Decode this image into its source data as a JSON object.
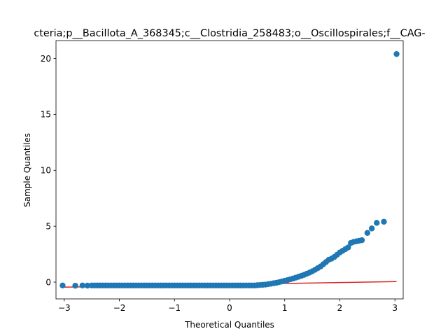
{
  "chart_data": {
    "type": "scatter",
    "title": "cteria;p__Bacillota_A_368345;c__Clostridia_258483;o__Oscillospirales;f__CAG-",
    "xlabel": "Theoretical Quantiles",
    "ylabel": "Sample Quantiles",
    "xlim": [
      -3.15,
      3.15
    ],
    "ylim": [
      -1.5,
      21.6
    ],
    "xticks": [
      -3,
      -2,
      -1,
      0,
      1,
      2,
      3
    ],
    "yticks": [
      0,
      5,
      10,
      15,
      20
    ],
    "grid": false,
    "colors": {
      "points": "#1f77b4",
      "line": "#d62728"
    },
    "reference_line": {
      "x": [
        -3.03,
        3.03
      ],
      "y": [
        -0.45,
        0.05
      ]
    },
    "series": [
      {
        "type": "scatter",
        "x": [
          -3.03,
          -2.8,
          -2.67,
          -2.58,
          -2.5,
          -2.45,
          -2.4,
          -2.35,
          -2.3,
          -2.25,
          -2.2,
          -2.15,
          -2.1,
          -2.05,
          -2.0,
          -1.95,
          -1.9,
          -1.85,
          -1.8,
          -1.75,
          -1.7,
          -1.65,
          -1.6,
          -1.55,
          -1.5,
          -1.45,
          -1.4,
          -1.35,
          -1.3,
          -1.25,
          -1.2,
          -1.15,
          -1.1,
          -1.05,
          -1.0,
          -0.95,
          -0.9,
          -0.85,
          -0.8,
          -0.75,
          -0.7,
          -0.65,
          -0.6,
          -0.55,
          -0.5,
          -0.45,
          -0.4,
          -0.35,
          -0.3,
          -0.25,
          -0.2,
          -0.15,
          -0.1,
          -0.05,
          0.0,
          0.05,
          0.1,
          0.15,
          0.2,
          0.25,
          0.3,
          0.35,
          0.4,
          0.45,
          0.5,
          0.55,
          0.6,
          0.65,
          0.7,
          0.75,
          0.8,
          0.85,
          0.9,
          0.95,
          1.0,
          1.05,
          1.1,
          1.15,
          1.2,
          1.25,
          1.3,
          1.35,
          1.4,
          1.45,
          1.5,
          1.55,
          1.6,
          1.65,
          1.7,
          1.75,
          1.8,
          1.85,
          1.9,
          1.95,
          2.0,
          2.05,
          2.1,
          2.15,
          2.2,
          2.25,
          2.3,
          2.35,
          2.4,
          2.5,
          2.58,
          2.67,
          2.8,
          3.03
        ],
        "y": [
          -0.3,
          -0.32,
          -0.3,
          -0.31,
          -0.3,
          -0.3,
          -0.3,
          -0.3,
          -0.3,
          -0.3,
          -0.3,
          -0.3,
          -0.3,
          -0.3,
          -0.3,
          -0.3,
          -0.3,
          -0.3,
          -0.3,
          -0.3,
          -0.3,
          -0.3,
          -0.3,
          -0.3,
          -0.3,
          -0.3,
          -0.3,
          -0.3,
          -0.3,
          -0.3,
          -0.3,
          -0.3,
          -0.3,
          -0.3,
          -0.3,
          -0.3,
          -0.3,
          -0.3,
          -0.3,
          -0.3,
          -0.3,
          -0.3,
          -0.3,
          -0.3,
          -0.3,
          -0.3,
          -0.3,
          -0.3,
          -0.3,
          -0.3,
          -0.3,
          -0.3,
          -0.3,
          -0.3,
          -0.3,
          -0.3,
          -0.3,
          -0.3,
          -0.3,
          -0.3,
          -0.3,
          -0.3,
          -0.3,
          -0.3,
          -0.28,
          -0.26,
          -0.24,
          -0.22,
          -0.18,
          -0.14,
          -0.1,
          -0.06,
          0.0,
          0.06,
          0.12,
          0.18,
          0.25,
          0.32,
          0.4,
          0.48,
          0.56,
          0.65,
          0.75,
          0.85,
          0.97,
          1.1,
          1.25,
          1.4,
          1.6,
          1.8,
          2.0,
          2.1,
          2.25,
          2.45,
          2.65,
          2.8,
          2.95,
          3.1,
          3.5,
          3.6,
          3.65,
          3.7,
          3.75,
          4.4,
          4.8,
          5.3,
          5.4,
          20.4
        ]
      }
    ]
  }
}
